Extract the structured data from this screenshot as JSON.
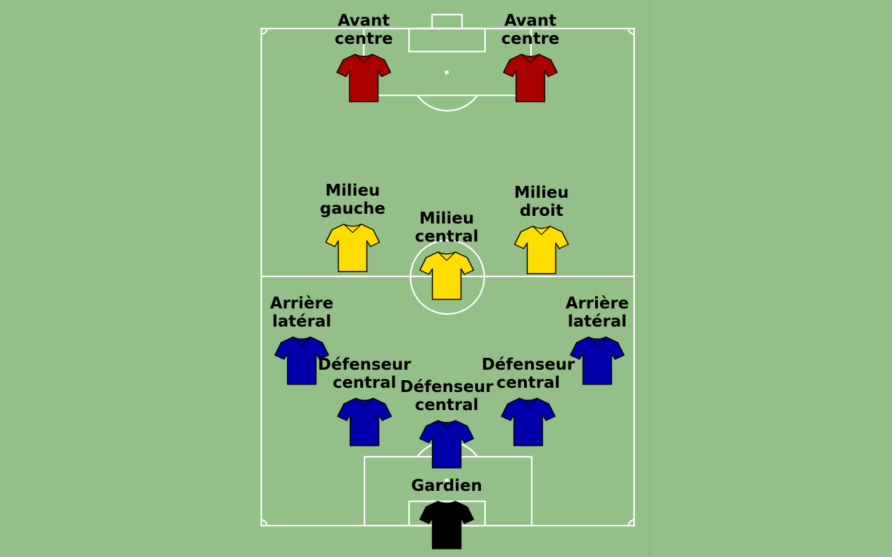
{
  "colors": {
    "background": "#94bf89",
    "lines": "#ffffff",
    "forward": "#aa0000",
    "midfielder": "#ffdd00",
    "defender": "#0000aa",
    "goalkeeper": "#000000",
    "outline": "#000000"
  },
  "players": [
    {
      "id": "fwd-left",
      "role": "forward",
      "label": [
        "Avant",
        "centre"
      ]
    },
    {
      "id": "fwd-right",
      "role": "forward",
      "label": [
        "Avant",
        "centre"
      ]
    },
    {
      "id": "mid-left",
      "role": "midfielder",
      "label": [
        "Milieu",
        "gauche"
      ]
    },
    {
      "id": "mid-center",
      "role": "midfielder",
      "label": [
        "Milieu",
        "central"
      ]
    },
    {
      "id": "mid-right",
      "role": "midfielder",
      "label": [
        "Milieu",
        "droit"
      ]
    },
    {
      "id": "fb-left",
      "role": "defender",
      "label": [
        "Arrière",
        "latéral"
      ]
    },
    {
      "id": "fb-right",
      "role": "defender",
      "label": [
        "Arrière",
        "latéral"
      ]
    },
    {
      "id": "cb-left",
      "role": "defender",
      "label": [
        "Défenseur",
        "central"
      ]
    },
    {
      "id": "cb-center",
      "role": "defender",
      "label": [
        "Défenseur",
        "central"
      ]
    },
    {
      "id": "cb-right",
      "role": "defender",
      "label": [
        "Défenseur",
        "central"
      ]
    },
    {
      "id": "gk",
      "role": "goalkeeper",
      "label": [
        "Gardien"
      ]
    }
  ]
}
